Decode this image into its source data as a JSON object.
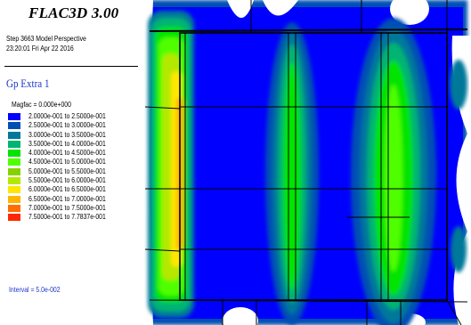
{
  "app": {
    "title": "FLAC3D 3.00"
  },
  "info": {
    "step_line": "Step 3663  Model Perspective",
    "date_line": "23:20:01 Fri Apr 22 2016"
  },
  "contour": {
    "title": "Gp Extra 1",
    "magfac": "Magfac =  0.000e+000",
    "interval": "Interval =  5.0e-002",
    "legend": [
      {
        "label": "2.0000e-001 to  2.5000e-001",
        "color": "#0000ff"
      },
      {
        "label": "2.5000e-001 to  3.0000e-001",
        "color": "#0050b4"
      },
      {
        "label": "3.0000e-001 to  3.5000e-001",
        "color": "#00789a"
      },
      {
        "label": "3.5000e-001 to  4.0000e-001",
        "color": "#00b472"
      },
      {
        "label": "4.0000e-001 to  4.5000e-001",
        "color": "#00e400"
      },
      {
        "label": "4.5000e-001 to  5.0000e-001",
        "color": "#50ff00"
      },
      {
        "label": "5.0000e-001 to  5.5000e-001",
        "color": "#86d200"
      },
      {
        "label": "5.5000e-001 to  6.0000e-001",
        "color": "#b4e800"
      },
      {
        "label": "6.0000e-001 to  6.5000e-001",
        "color": "#ffe600"
      },
      {
        "label": "6.5000e-001 to  7.0000e-001",
        "color": "#ffb400"
      },
      {
        "label": "7.0000e-001 to  7.5000e-001",
        "color": "#ff6e00"
      },
      {
        "label": "7.5000e-001 to  7.7837e-001",
        "color": "#ff2800"
      }
    ]
  }
}
